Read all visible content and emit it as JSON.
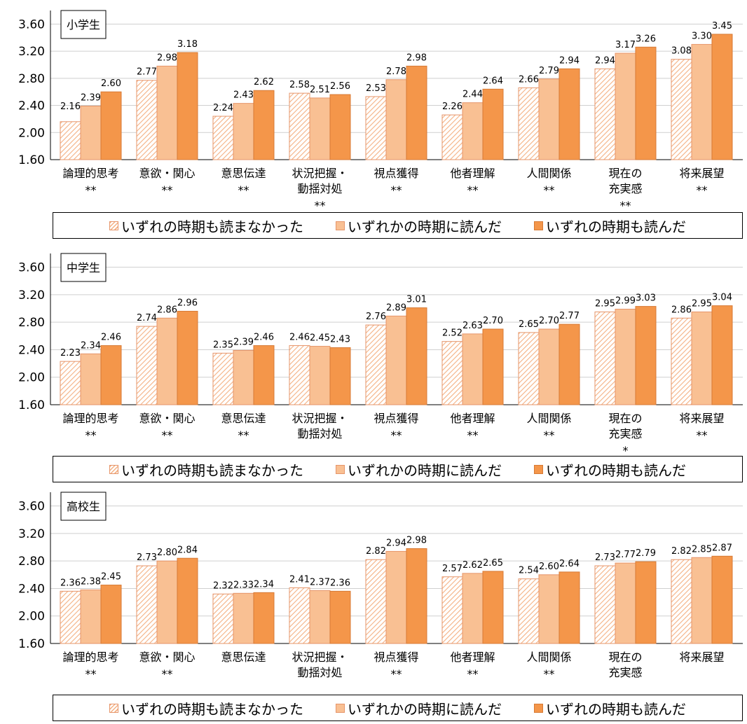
{
  "colors": {
    "series0_stripe": "#f4b183",
    "series1": "#f9c093",
    "series2": "#f4964a",
    "border": "#e6956a"
  },
  "legend": [
    "いずれの時期も読まなかった",
    "いずれかの時期に読んだ",
    "いずれの時期も読んだ"
  ],
  "chart_data": [
    {
      "type": "bar",
      "title": "小学生",
      "categories": [
        [
          "論理的思考"
        ],
        [
          "意欲・関心"
        ],
        [
          "意思伝達"
        ],
        [
          "状況把握・",
          "動揺対処"
        ],
        [
          "視点獲得"
        ],
        [
          "他者理解"
        ],
        [
          "人間関係"
        ],
        [
          "現在の",
          "充実感"
        ],
        [
          "将来展望"
        ]
      ],
      "significance": [
        "**",
        "**",
        "**",
        "**",
        "**",
        "**",
        "**",
        "**",
        "**"
      ],
      "series": [
        {
          "name": "いずれの時期も読まなかった",
          "values": [
            2.16,
            2.77,
            2.24,
            2.58,
            2.53,
            2.26,
            2.66,
            2.94,
            3.08
          ]
        },
        {
          "name": "いずれかの時期に読んだ",
          "values": [
            2.39,
            2.98,
            2.43,
            2.51,
            2.78,
            2.44,
            2.79,
            3.17,
            3.3
          ]
        },
        {
          "name": "いずれの時期も読んだ",
          "values": [
            2.6,
            3.18,
            2.62,
            2.56,
            2.98,
            2.64,
            2.94,
            3.26,
            3.45
          ]
        }
      ],
      "yticks": [
        "1.60",
        "2.00",
        "2.40",
        "2.80",
        "3.20",
        "3.60"
      ],
      "ylim": [
        1.6,
        3.8
      ]
    },
    {
      "type": "bar",
      "title": "中学生",
      "categories": [
        [
          "論理的思考"
        ],
        [
          "意欲・関心"
        ],
        [
          "意思伝達"
        ],
        [
          "状況把握・",
          "動揺対処"
        ],
        [
          "視点獲得"
        ],
        [
          "他者理解"
        ],
        [
          "人間関係"
        ],
        [
          "現在の",
          "充実感"
        ],
        [
          "将来展望"
        ]
      ],
      "significance": [
        "**",
        "**",
        "**",
        "",
        "**",
        "**",
        "**",
        "*",
        "**"
      ],
      "series": [
        {
          "name": "いずれの時期も読まなかった",
          "values": [
            2.23,
            2.74,
            2.35,
            2.46,
            2.76,
            2.52,
            2.65,
            2.95,
            2.86
          ]
        },
        {
          "name": "いずれかの時期に読んだ",
          "values": [
            2.34,
            2.86,
            2.39,
            2.45,
            2.89,
            2.63,
            2.7,
            2.99,
            2.95
          ]
        },
        {
          "name": "いずれの時期も読んだ",
          "values": [
            2.46,
            2.96,
            2.46,
            2.43,
            3.01,
            2.7,
            2.77,
            3.03,
            3.04
          ]
        }
      ],
      "yticks": [
        "1.60",
        "2.00",
        "2.40",
        "2.80",
        "3.20",
        "3.60"
      ],
      "ylim": [
        1.6,
        3.8
      ]
    },
    {
      "type": "bar",
      "title": "高校生",
      "categories": [
        [
          "論理的思考"
        ],
        [
          "意欲・関心"
        ],
        [
          "意思伝達"
        ],
        [
          "状況把握・",
          "動揺対処"
        ],
        [
          "視点獲得"
        ],
        [
          "他者理解"
        ],
        [
          "人間関係"
        ],
        [
          "現在の",
          "充実感"
        ],
        [
          "将来展望"
        ]
      ],
      "significance": [
        "**",
        "**",
        "",
        "",
        "**",
        "**",
        "**",
        "",
        ""
      ],
      "series": [
        {
          "name": "いずれの時期も読まなかった",
          "values": [
            2.36,
            2.73,
            2.32,
            2.41,
            2.82,
            2.57,
            2.54,
            2.73,
            2.82
          ]
        },
        {
          "name": "いずれかの時期に読んだ",
          "values": [
            2.38,
            2.8,
            2.33,
            2.37,
            2.94,
            2.62,
            2.6,
            2.77,
            2.85
          ]
        },
        {
          "name": "いずれの時期も読んだ",
          "values": [
            2.45,
            2.84,
            2.34,
            2.36,
            2.98,
            2.65,
            2.64,
            2.79,
            2.87
          ]
        }
      ],
      "yticks": [
        "1.60",
        "2.00",
        "2.40",
        "2.80",
        "3.20",
        "3.60"
      ],
      "ylim": [
        1.6,
        3.8
      ]
    }
  ]
}
